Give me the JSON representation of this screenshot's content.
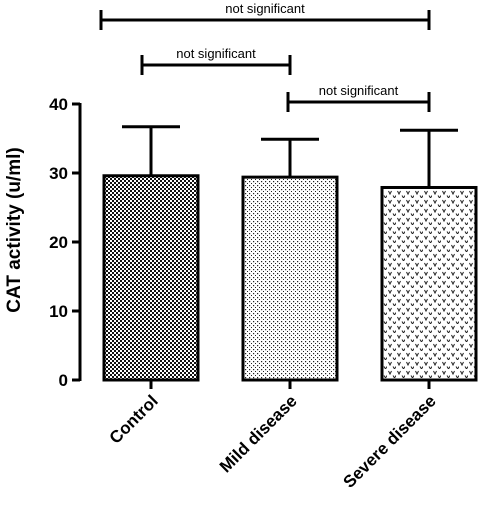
{
  "chart_data": {
    "type": "bar",
    "categories": [
      "Control",
      "Mild disease",
      "Severe disease"
    ],
    "values": [
      29.6,
      29.4,
      27.9
    ],
    "error_upper": [
      36.7,
      34.9,
      36.2
    ],
    "xlabel": "",
    "ylabel": "CAT activity (u/ml)",
    "ylim": [
      0,
      40
    ],
    "yticks": [
      0,
      10,
      20,
      30,
      40
    ],
    "grid": false,
    "bar_patterns": [
      "dense-checker",
      "fine-dots",
      "sparse-v"
    ],
    "significance": [
      {
        "from": 0,
        "to": 2,
        "label": "not significant"
      },
      {
        "from": 0,
        "to": 1,
        "label": "not significant"
      },
      {
        "from": 1,
        "to": 2,
        "label": "not significant"
      }
    ]
  }
}
